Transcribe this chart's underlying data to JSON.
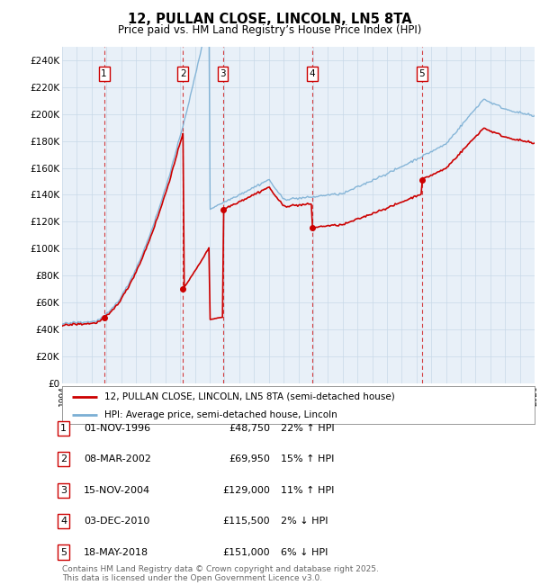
{
  "title": "12, PULLAN CLOSE, LINCOLN, LN5 8TA",
  "subtitle": "Price paid vs. HM Land Registry’s House Price Index (HPI)",
  "ylim": [
    0,
    250000
  ],
  "ytick_step": 20000,
  "x_start_year": 1994,
  "x_end_year": 2026,
  "legend_line1": "12, PULLAN CLOSE, LINCOLN, LN5 8TA (semi-detached house)",
  "legend_line2": "HPI: Average price, semi-detached house, Lincoln",
  "line_color_property": "#cc0000",
  "line_color_hpi": "#7bafd4",
  "purchases": [
    {
      "num": 1,
      "date": "01-NOV-1996",
      "year": 1996.84,
      "price": 48750,
      "pct": "22%",
      "dir": "↑"
    },
    {
      "num": 2,
      "date": "08-MAR-2002",
      "year": 2002.19,
      "price": 69950,
      "pct": "15%",
      "dir": "↑"
    },
    {
      "num": 3,
      "date": "15-NOV-2004",
      "year": 2004.88,
      "price": 129000,
      "pct": "11%",
      "dir": "↑"
    },
    {
      "num": 4,
      "date": "03-DEC-2010",
      "year": 2010.92,
      "price": 115500,
      "pct": "2%",
      "dir": "↓"
    },
    {
      "num": 5,
      "date": "18-MAY-2018",
      "year": 2018.38,
      "price": 151000,
      "pct": "6%",
      "dir": "↓"
    }
  ],
  "footer_line1": "Contains HM Land Registry data © Crown copyright and database right 2025.",
  "footer_line2": "This data is licensed under the Open Government Licence v3.0.",
  "bg_color": "#ffffff",
  "grid_color": "#c8d8e8",
  "plot_bg_color": "#e8f0f8"
}
